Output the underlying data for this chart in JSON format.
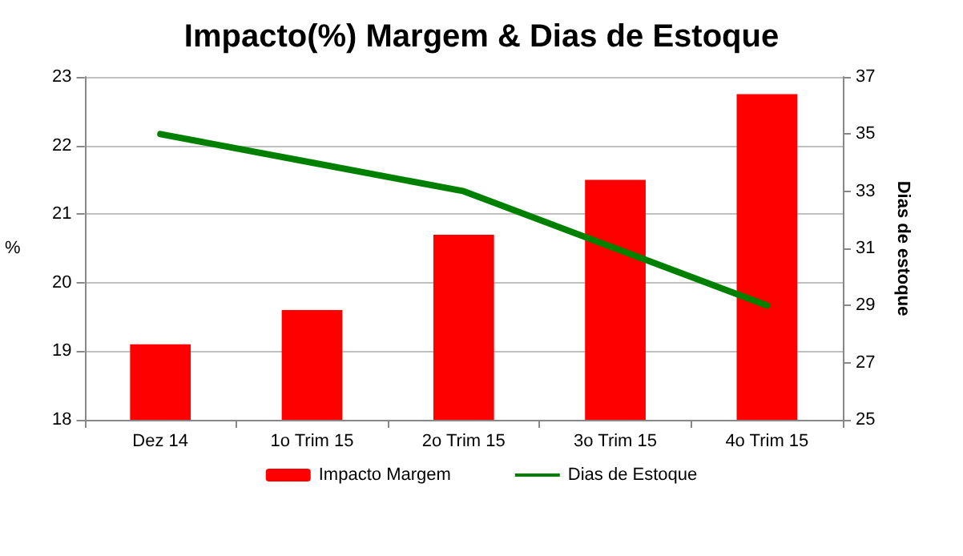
{
  "chart_data": {
    "type": "bar",
    "title": "Impacto(%) Margem & Dias de Estoque",
    "ylabel": "%",
    "y2label": "Dias de estoque",
    "categories": [
      "Dez 14",
      "1o Trim 15",
      "2o Trim 15",
      "3o Trim 15",
      "4o Trim 15"
    ],
    "series": [
      {
        "name": "Impacto Margem",
        "color": "#ff0000",
        "values": [
          19.1,
          19.6,
          20.7,
          21.5,
          22.75
        ]
      },
      {
        "name": "Dias de Estoque",
        "type": "line",
        "axis": "y2",
        "color": "#008000",
        "marker": "none",
        "values": [
          35,
          34,
          33,
          31,
          29
        ]
      }
    ],
    "ylim": [
      18,
      23
    ],
    "yticks": [
      18,
      19,
      20,
      21,
      22,
      23
    ],
    "y2lim": [
      25,
      37
    ],
    "y2ticks": [
      25,
      27,
      29,
      31,
      33,
      35,
      37
    ],
    "grid": "y",
    "legend": "bottom"
  }
}
